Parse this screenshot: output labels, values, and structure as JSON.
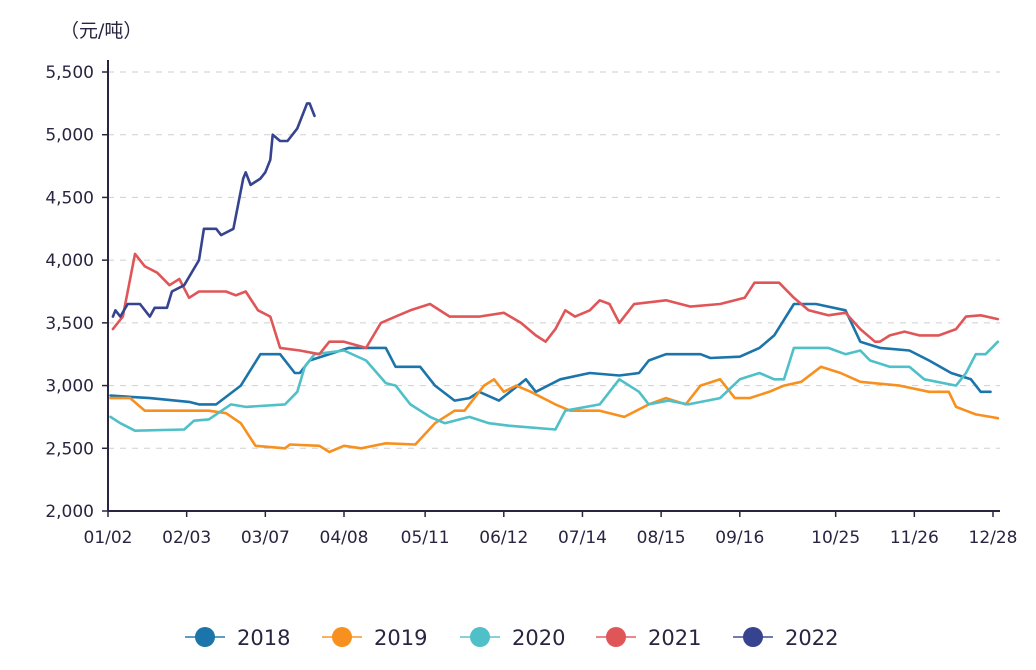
{
  "chart_data": {
    "type": "line",
    "unit_label": "（元/吨）",
    "x_unit": "days since 01/02",
    "xlim": [
      0,
      360
    ],
    "ylim": [
      2000,
      5500
    ],
    "yticks": [
      2000,
      2500,
      3000,
      3500,
      4000,
      4500,
      5000,
      5500
    ],
    "ytick_labels": [
      "2,000",
      "2,500",
      "3,000",
      "3,500",
      "4,000",
      "4,500",
      "5,000",
      "5,500"
    ],
    "xticks": [
      0,
      32,
      64,
      96,
      129,
      161,
      193,
      225,
      257,
      296,
      328,
      360
    ],
    "xtick_labels": [
      "01/02",
      "02/03",
      "03/07",
      "04/08",
      "05/11",
      "06/12",
      "07/14",
      "08/15",
      "09/16",
      "10/25",
      "11/26",
      "12/28"
    ],
    "grid": "horizontal-dashed",
    "legend_position": "bottom",
    "series": [
      {
        "name": "2018",
        "color": "#1b74aa",
        "points": [
          [
            1,
            2920
          ],
          [
            17,
            2900
          ],
          [
            33,
            2870
          ],
          [
            37,
            2850
          ],
          [
            44,
            2850
          ],
          [
            54,
            3000
          ],
          [
            62,
            3250
          ],
          [
            70,
            3250
          ],
          [
            76,
            3100
          ],
          [
            78,
            3100
          ],
          [
            82,
            3200
          ],
          [
            98,
            3300
          ],
          [
            113,
            3300
          ],
          [
            117,
            3150
          ],
          [
            127,
            3150
          ],
          [
            133,
            3000
          ],
          [
            141,
            2880
          ],
          [
            147,
            2900
          ],
          [
            151,
            2950
          ],
          [
            159,
            2880
          ],
          [
            170,
            3050
          ],
          [
            174,
            2950
          ],
          [
            184,
            3050
          ],
          [
            196,
            3100
          ],
          [
            208,
            3080
          ],
          [
            216,
            3100
          ],
          [
            220,
            3200
          ],
          [
            227,
            3250
          ],
          [
            241,
            3250
          ],
          [
            245,
            3220
          ],
          [
            257,
            3230
          ],
          [
            265,
            3300
          ],
          [
            271,
            3400
          ],
          [
            279,
            3650
          ],
          [
            288,
            3650
          ],
          [
            300,
            3600
          ],
          [
            306,
            3350
          ],
          [
            314,
            3300
          ],
          [
            326,
            3280
          ],
          [
            334,
            3200
          ],
          [
            343,
            3100
          ],
          [
            351,
            3050
          ],
          [
            355,
            2950
          ],
          [
            359,
            2950
          ]
        ]
      },
      {
        "name": "2019",
        "color": "#f7901e",
        "points": [
          [
            1,
            2900
          ],
          [
            9,
            2900
          ],
          [
            15,
            2800
          ],
          [
            41,
            2800
          ],
          [
            48,
            2780
          ],
          [
            54,
            2700
          ],
          [
            60,
            2520
          ],
          [
            72,
            2500
          ],
          [
            74,
            2530
          ],
          [
            86,
            2520
          ],
          [
            90,
            2470
          ],
          [
            96,
            2520
          ],
          [
            103,
            2500
          ],
          [
            113,
            2540
          ],
          [
            125,
            2530
          ],
          [
            133,
            2700
          ],
          [
            141,
            2800
          ],
          [
            145,
            2800
          ],
          [
            153,
            3000
          ],
          [
            157,
            3050
          ],
          [
            161,
            2950
          ],
          [
            166,
            3000
          ],
          [
            172,
            2950
          ],
          [
            182,
            2850
          ],
          [
            188,
            2800
          ],
          [
            200,
            2800
          ],
          [
            210,
            2750
          ],
          [
            220,
            2850
          ],
          [
            227,
            2900
          ],
          [
            235,
            2850
          ],
          [
            241,
            3000
          ],
          [
            249,
            3050
          ],
          [
            255,
            2900
          ],
          [
            261,
            2900
          ],
          [
            269,
            2950
          ],
          [
            275,
            3000
          ],
          [
            282,
            3030
          ],
          [
            290,
            3150
          ],
          [
            298,
            3100
          ],
          [
            306,
            3030
          ],
          [
            322,
            3000
          ],
          [
            334,
            2950
          ],
          [
            342,
            2950
          ],
          [
            345,
            2830
          ],
          [
            349,
            2800
          ],
          [
            353,
            2770
          ],
          [
            359,
            2750
          ],
          [
            362,
            2740
          ]
        ]
      },
      {
        "name": "2020",
        "color": "#4fc0c8",
        "points": [
          [
            1,
            2750
          ],
          [
            5,
            2700
          ],
          [
            11,
            2640
          ],
          [
            31,
            2650
          ],
          [
            35,
            2720
          ],
          [
            41,
            2730
          ],
          [
            50,
            2850
          ],
          [
            56,
            2830
          ],
          [
            72,
            2850
          ],
          [
            77,
            2950
          ],
          [
            80,
            3150
          ],
          [
            84,
            3250
          ],
          [
            96,
            3280
          ],
          [
            105,
            3200
          ],
          [
            113,
            3020
          ],
          [
            117,
            3000
          ],
          [
            123,
            2850
          ],
          [
            131,
            2750
          ],
          [
            137,
            2700
          ],
          [
            147,
            2750
          ],
          [
            155,
            2700
          ],
          [
            163,
            2680
          ],
          [
            182,
            2650
          ],
          [
            186,
            2800
          ],
          [
            200,
            2850
          ],
          [
            208,
            3050
          ],
          [
            216,
            2950
          ],
          [
            220,
            2850
          ],
          [
            228,
            2880
          ],
          [
            236,
            2850
          ],
          [
            249,
            2900
          ],
          [
            257,
            3050
          ],
          [
            265,
            3100
          ],
          [
            271,
            3050
          ],
          [
            275,
            3050
          ],
          [
            279,
            3300
          ],
          [
            293,
            3300
          ],
          [
            300,
            3250
          ],
          [
            306,
            3280
          ],
          [
            310,
            3200
          ],
          [
            318,
            3150
          ],
          [
            326,
            3150
          ],
          [
            332,
            3050
          ],
          [
            345,
            3000
          ],
          [
            349,
            3100
          ],
          [
            353,
            3250
          ],
          [
            357,
            3250
          ],
          [
            362,
            3350
          ]
        ]
      },
      {
        "name": "2021",
        "color": "#e05658",
        "points": [
          [
            2,
            3450
          ],
          [
            6,
            3550
          ],
          [
            11,
            4050
          ],
          [
            15,
            3950
          ],
          [
            20,
            3900
          ],
          [
            25,
            3800
          ],
          [
            29,
            3850
          ],
          [
            33,
            3700
          ],
          [
            37,
            3750
          ],
          [
            48,
            3750
          ],
          [
            52,
            3720
          ],
          [
            56,
            3750
          ],
          [
            61,
            3600
          ],
          [
            66,
            3550
          ],
          [
            70,
            3300
          ],
          [
            78,
            3280
          ],
          [
            86,
            3250
          ],
          [
            90,
            3350
          ],
          [
            96,
            3350
          ],
          [
            105,
            3300
          ],
          [
            111,
            3500
          ],
          [
            117,
            3550
          ],
          [
            123,
            3600
          ],
          [
            131,
            3650
          ],
          [
            139,
            3550
          ],
          [
            151,
            3550
          ],
          [
            161,
            3580
          ],
          [
            168,
            3500
          ],
          [
            174,
            3400
          ],
          [
            178,
            3350
          ],
          [
            182,
            3450
          ],
          [
            186,
            3600
          ],
          [
            190,
            3550
          ],
          [
            196,
            3600
          ],
          [
            200,
            3680
          ],
          [
            204,
            3650
          ],
          [
            208,
            3500
          ],
          [
            214,
            3650
          ],
          [
            227,
            3680
          ],
          [
            237,
            3630
          ],
          [
            249,
            3650
          ],
          [
            259,
            3700
          ],
          [
            263,
            3820
          ],
          [
            273,
            3820
          ],
          [
            279,
            3700
          ],
          [
            285,
            3600
          ],
          [
            293,
            3560
          ],
          [
            300,
            3580
          ],
          [
            306,
            3450
          ],
          [
            312,
            3350
          ],
          [
            314,
            3350
          ],
          [
            318,
            3400
          ],
          [
            324,
            3430
          ],
          [
            330,
            3400
          ],
          [
            338,
            3400
          ],
          [
            345,
            3450
          ],
          [
            349,
            3550
          ],
          [
            355,
            3560
          ],
          [
            362,
            3530
          ]
        ]
      },
      {
        "name": "2022",
        "color": "#36448f",
        "points": [
          [
            2,
            3550
          ],
          [
            3,
            3600
          ],
          [
            5,
            3550
          ],
          [
            8,
            3650
          ],
          [
            13,
            3650
          ],
          [
            17,
            3550
          ],
          [
            19,
            3620
          ],
          [
            24,
            3620
          ],
          [
            26,
            3750
          ],
          [
            31,
            3800
          ],
          [
            37,
            4000
          ],
          [
            39,
            4250
          ],
          [
            44,
            4250
          ],
          [
            46,
            4200
          ],
          [
            51,
            4250
          ],
          [
            55,
            4650
          ],
          [
            56,
            4700
          ],
          [
            58,
            4600
          ],
          [
            62,
            4650
          ],
          [
            64,
            4700
          ],
          [
            66,
            4800
          ],
          [
            67,
            5000
          ],
          [
            70,
            4950
          ],
          [
            73,
            4950
          ],
          [
            77,
            5050
          ],
          [
            81,
            5250
          ],
          [
            82,
            5250
          ],
          [
            84,
            5150
          ]
        ]
      }
    ]
  }
}
